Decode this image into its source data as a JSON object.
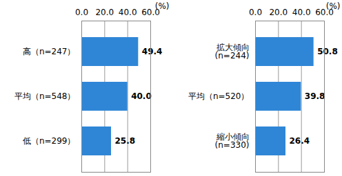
{
  "chart_data": [
    {
      "type": "bar",
      "orientation": "horizontal",
      "categories": [
        "高（n=247）",
        "平均（n=548）",
        "低（n=299）"
      ],
      "values": [
        49.4,
        40.0,
        25.8
      ],
      "value_labels": [
        "49.4",
        "40.0",
        "25.8"
      ],
      "data_labels": true,
      "color": "#2f86d6",
      "xlabel": "(%)",
      "xlim": [
        0,
        60
      ],
      "xticks": [
        {
          "value": 0,
          "label": "0.0"
        },
        {
          "value": 20,
          "label": "20.0"
        },
        {
          "value": 40,
          "label": "40.0"
        },
        {
          "value": 60,
          "label": "60.0"
        }
      ],
      "grid": true
    },
    {
      "type": "bar",
      "orientation": "horizontal",
      "categories": [
        "拡大傾向\n(n=244)",
        "平均（n=520）",
        "縮小傾向\n(n=330)"
      ],
      "values": [
        50.8,
        39.8,
        26.4
      ],
      "value_labels": [
        "50.8",
        "39.8",
        "26.4"
      ],
      "data_labels": true,
      "color": "#2f86d6",
      "xlabel": "(%)",
      "xlim": [
        0,
        60
      ],
      "xticks": [
        {
          "value": 0,
          "label": "0.0"
        },
        {
          "value": 20,
          "label": "20.0"
        },
        {
          "value": 40,
          "label": "40.0"
        },
        {
          "value": 60,
          "label": "60.0"
        }
      ],
      "grid": true
    }
  ]
}
